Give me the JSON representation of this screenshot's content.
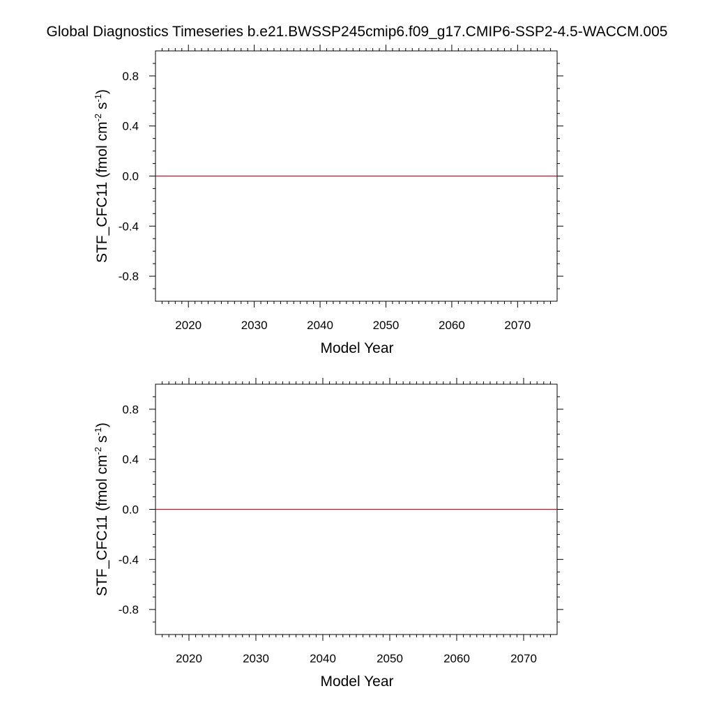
{
  "title": "Global Diagnostics Timeseries b.e21.BWSSP245cmip6.f09_g17.CMIP6-SSP2-4.5-WACCM.005",
  "colors": {
    "series": "#b2182b",
    "axis": "#000000"
  },
  "chart_data": [
    {
      "type": "line",
      "xlabel": "Model Year",
      "ylabel": {
        "base": "STF_CFC11 (fmol cm",
        "sup1": "-2",
        "mid": " s",
        "sup2": "-1",
        "end": ")"
      },
      "xlim": [
        2015,
        2076
      ],
      "ylim": [
        -1.0,
        1.0
      ],
      "x_ticks": [
        2020,
        2030,
        2040,
        2050,
        2060,
        2070
      ],
      "y_ticks": [
        0.8,
        0.4,
        0.0,
        -0.4,
        -0.8
      ],
      "y_tick_labels": [
        "0.8",
        "0.4",
        "0.0",
        "-0.4",
        "-0.8"
      ],
      "series": [
        {
          "x": [
            2015,
            2076
          ],
          "y": [
            0.0,
            0.0
          ]
        }
      ]
    },
    {
      "type": "line",
      "xlabel": "Model Year",
      "ylabel": {
        "base": "STF_CFC11 (fmol cm",
        "sup1": "-2",
        "mid": " s",
        "sup2": "-1",
        "end": ")"
      },
      "xlim": [
        2015,
        2075
      ],
      "ylim": [
        -1.0,
        1.0
      ],
      "x_ticks": [
        2020,
        2030,
        2040,
        2050,
        2060,
        2070
      ],
      "y_ticks": [
        0.8,
        0.4,
        0.0,
        -0.4,
        -0.8
      ],
      "y_tick_labels": [
        "0.8",
        "0.4",
        "0.0",
        "-0.4",
        "-0.8"
      ],
      "series": [
        {
          "x": [
            2015,
            2075
          ],
          "y": [
            0.0,
            0.0
          ]
        }
      ]
    }
  ]
}
